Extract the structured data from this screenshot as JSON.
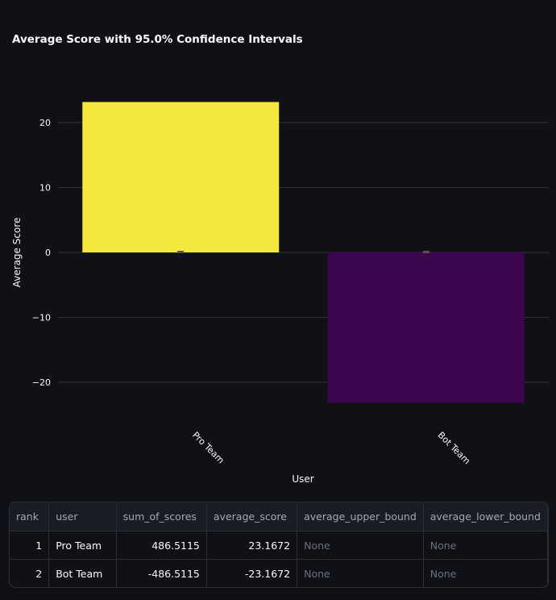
{
  "chart_data": {
    "type": "bar",
    "title": "Average Score with 95.0% Confidence Intervals",
    "xlabel": "User",
    "ylabel": "Average Score",
    "categories": [
      "Pro Team",
      "Bot Team"
    ],
    "values": [
      23.1672,
      -23.1672
    ],
    "colors": [
      "#f5e83d",
      "#3d0550"
    ],
    "ylim": [
      -25,
      30
    ],
    "yticks": [
      -20,
      -10,
      0,
      10,
      20
    ],
    "grid": true
  },
  "table": {
    "columns": [
      "rank",
      "user",
      "sum_of_scores",
      "average_score",
      "average_upper_bound",
      "average_lower_bound"
    ],
    "rows": [
      [
        "1",
        "Pro Team",
        "486.5115",
        "23.1672",
        "None",
        "None"
      ],
      [
        "2",
        "Bot Team",
        "-486.5115",
        "-23.1672",
        "None",
        "None"
      ]
    ]
  }
}
